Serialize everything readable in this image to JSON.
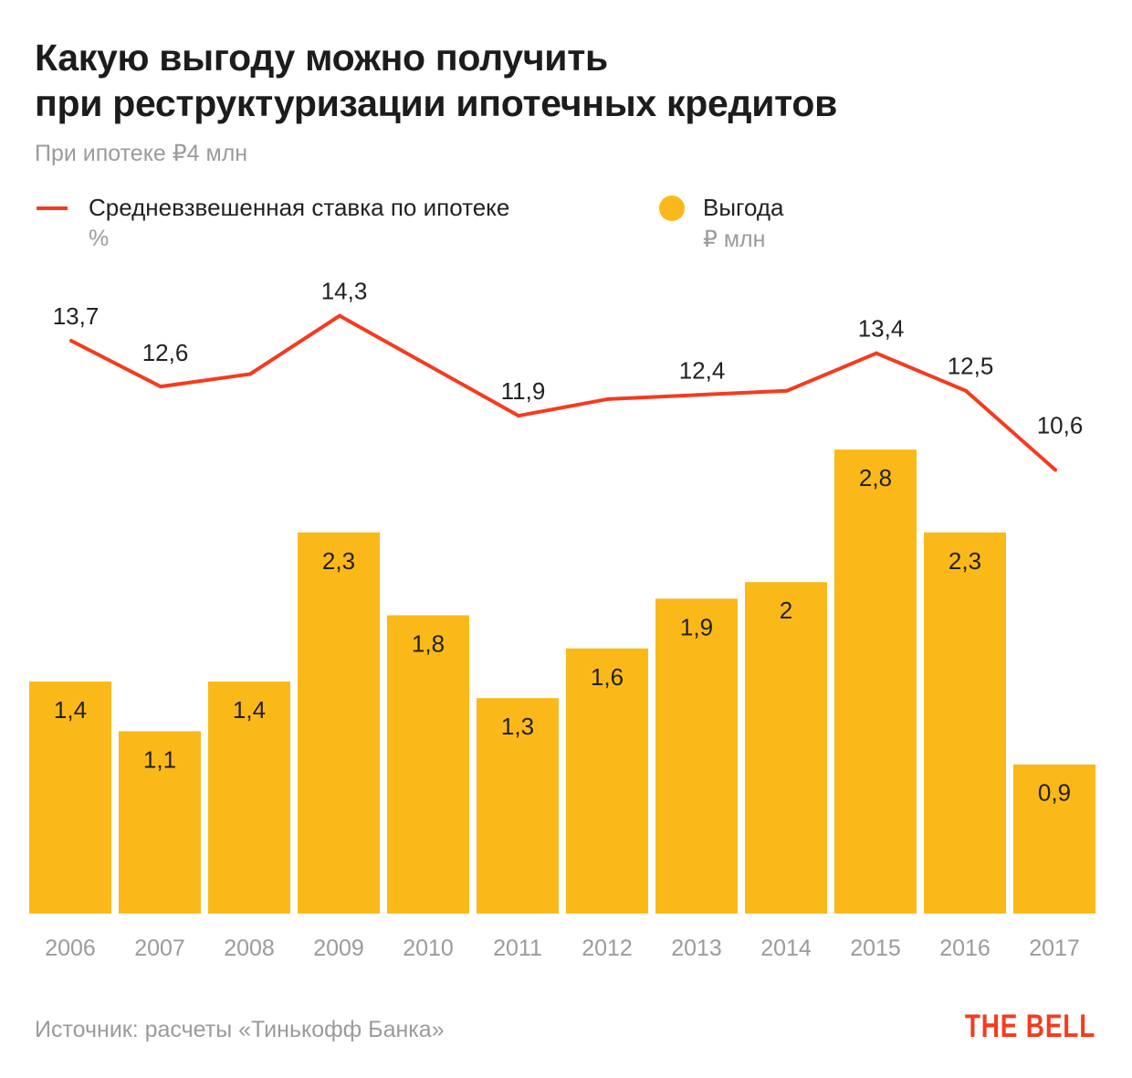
{
  "title_line1": "Какую выгоду можно получить",
  "title_line2": "при реструктуризации ипотечных кредитов",
  "subtitle": "При ипотеке ₽4 млн",
  "legend": {
    "line": {
      "label": "Средневзвешенная ставка по ипотеке",
      "unit": "%"
    },
    "bar": {
      "label": "Выгода",
      "unit": "₽ млн"
    }
  },
  "source": "Источник: расчеты «Тинькофф Банка»",
  "logo": "THE BELL",
  "colors": {
    "bar": "#fbb919",
    "line": "#f53b1e",
    "axis_text": "#9b9b9b"
  },
  "chart_data": {
    "type": "bar+line",
    "categories": [
      "2006",
      "2007",
      "2008",
      "2009",
      "2010",
      "2011",
      "2012",
      "2013",
      "2014",
      "2015",
      "2016",
      "2017"
    ],
    "series": [
      {
        "name": "Средневзвешенная ставка по ипотеке",
        "type": "line",
        "unit": "%",
        "values": [
          13.7,
          12.6,
          12.9,
          14.3,
          13.1,
          11.9,
          12.3,
          12.4,
          12.5,
          13.4,
          12.5,
          10.6
        ],
        "labels": [
          "13,7",
          "12,6",
          null,
          "14,3",
          null,
          "11,9",
          null,
          "12,4",
          null,
          "13,4",
          "12,5",
          "10,6"
        ]
      },
      {
        "name": "Выгода",
        "type": "bar",
        "unit": "₽ млн",
        "values": [
          1.4,
          1.1,
          1.4,
          2.3,
          1.8,
          1.3,
          1.6,
          1.9,
          2,
          2.8,
          2.3,
          0.9
        ],
        "labels": [
          "1,4",
          "1,1",
          "1,4",
          "2,3",
          "1,8",
          "1,3",
          "1,6",
          "1,9",
          "2",
          "2,8",
          "2,3",
          "0,9"
        ]
      }
    ],
    "grid": false
  }
}
